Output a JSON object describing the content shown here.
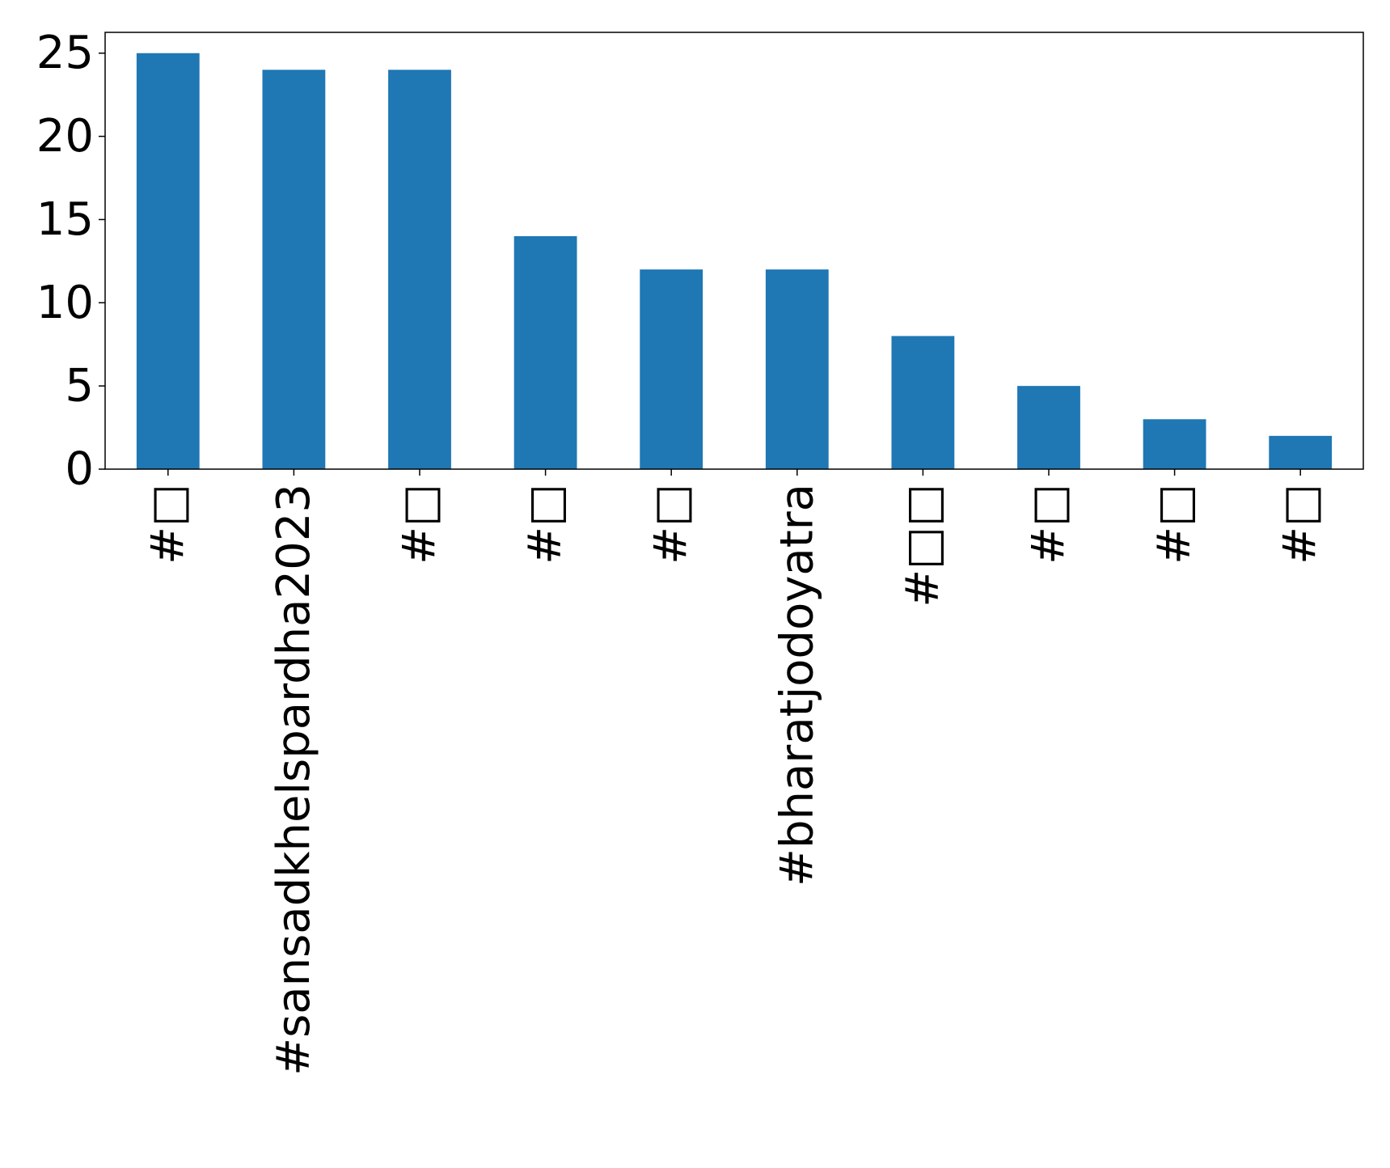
{
  "chart_data": {
    "type": "bar",
    "categories": [
      "#□",
      "#sansadkhelspardha2023",
      "#□",
      "#□",
      "#□",
      "#bharatjodoyatra",
      "#□□",
      "#□",
      "#□",
      "#□"
    ],
    "values": [
      25,
      24,
      24,
      14,
      12,
      12,
      8,
      5,
      3,
      2
    ],
    "title": "",
    "xlabel": "",
    "ylabel": "",
    "ylim": [
      0,
      26.25
    ],
    "yticks": [
      0,
      5,
      10,
      15,
      20,
      25
    ],
    "bar_color": "#1f77b4",
    "grid": false,
    "legend": "none"
  }
}
